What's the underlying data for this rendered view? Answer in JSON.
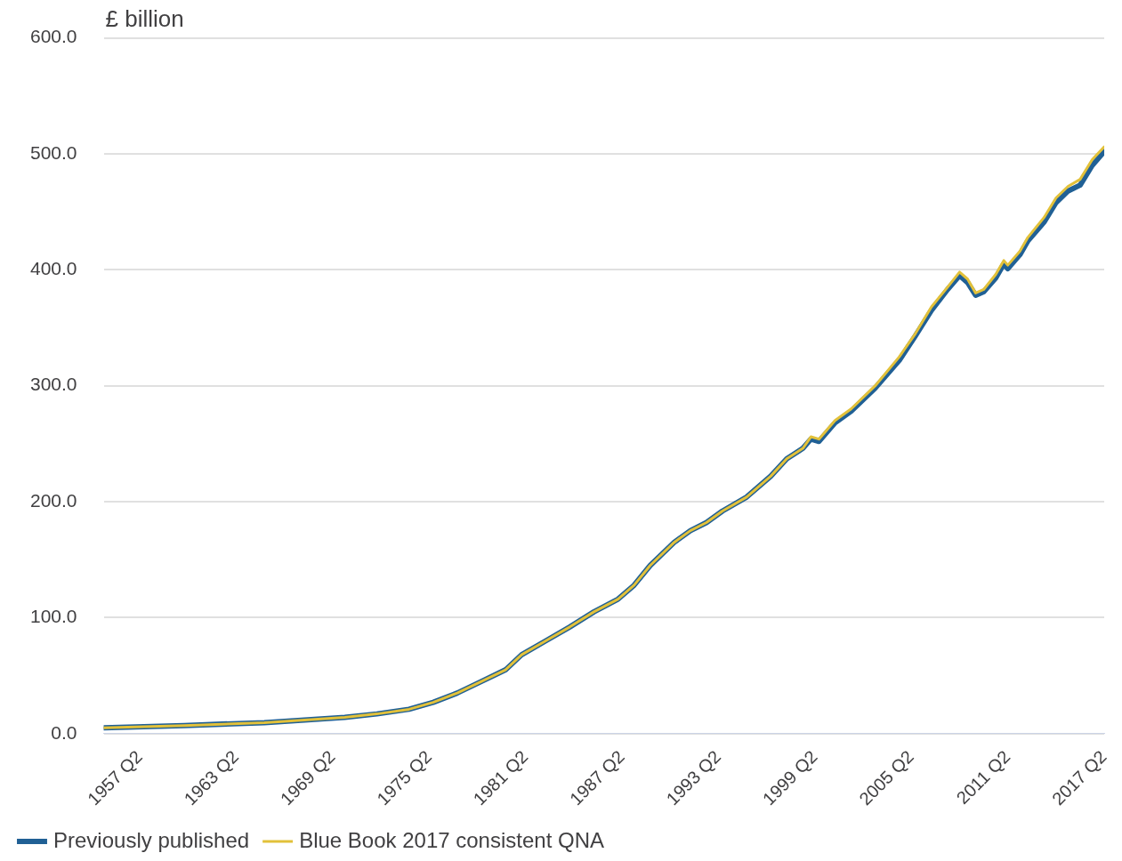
{
  "chart_data": {
    "type": "line",
    "ylabel": "£ billion",
    "xlim": [
      "1955-01",
      "2017-04"
    ],
    "xticks": [
      {
        "value": "1957-04",
        "label": "1957 Q2"
      },
      {
        "value": "1963-04",
        "label": "1963 Q2"
      },
      {
        "value": "1969-04",
        "label": "1969 Q2"
      },
      {
        "value": "1975-04",
        "label": "1975 Q2"
      },
      {
        "value": "1981-04",
        "label": "1981 Q2"
      },
      {
        "value": "1987-04",
        "label": "1987 Q2"
      },
      {
        "value": "1993-04",
        "label": "1993 Q2"
      },
      {
        "value": "1999-04",
        "label": "1999 Q2"
      },
      {
        "value": "2005-04",
        "label": "2005 Q2"
      },
      {
        "value": "2011-04",
        "label": "2011 Q2"
      },
      {
        "value": "2017-04",
        "label": "2017 Q2"
      }
    ],
    "ylim": [
      0,
      600
    ],
    "yticks": [
      {
        "value": 0,
        "label": "0.0"
      },
      {
        "value": 100,
        "label": "100.0"
      },
      {
        "value": 200,
        "label": "200.0"
      },
      {
        "value": 300,
        "label": "300.0"
      },
      {
        "value": 400,
        "label": "400.0"
      },
      {
        "value": 500,
        "label": "500.0"
      },
      {
        "value": 600,
        "label": "600.0"
      }
    ],
    "x": [
      "1955-01",
      "1960-01",
      "1965-01",
      "1970-01",
      "1972-01",
      "1974-01",
      "1975-07",
      "1977-01",
      "1978-07",
      "1980-01",
      "1981-01",
      "1982-07",
      "1984-01",
      "1985-07",
      "1987-01",
      "1988-01",
      "1989-01",
      "1990-07",
      "1991-07",
      "1992-07",
      "1993-07",
      "1995-01",
      "1996-07",
      "1997-07",
      "1998-07",
      "1999-01",
      "1999-07",
      "2000-07",
      "2001-07",
      "2003-01",
      "2004-07",
      "2005-07",
      "2006-07",
      "2007-07",
      "2008-04",
      "2008-10",
      "2009-04",
      "2009-10",
      "2010-07",
      "2011-01",
      "2011-04",
      "2012-01",
      "2012-07",
      "2013-07",
      "2014-04",
      "2015-01",
      "2015-10",
      "2016-07",
      "2017-04"
    ],
    "series": [
      {
        "name": "Previously published",
        "color": "#206095",
        "values": [
          5,
          7,
          9.5,
          14,
          17,
          21,
          27,
          35,
          45,
          55,
          68,
          80,
          92,
          105,
          116,
          128,
          145,
          165,
          175,
          182,
          192,
          204,
          222,
          237,
          246,
          254,
          252,
          268,
          278,
          298,
          322,
          343,
          365,
          383,
          395,
          389,
          378,
          381,
          393,
          405,
          401,
          413,
          425,
          441,
          458,
          468,
          473,
          490,
          502
        ]
      },
      {
        "name": "Blue Book 2017 consistent QNA",
        "color": "#e2c13a",
        "values": [
          5,
          7,
          9.5,
          14,
          17,
          21,
          27,
          35,
          45,
          55,
          68,
          80,
          92,
          105,
          116,
          128,
          145,
          165,
          175,
          182,
          192,
          204,
          222,
          237,
          246,
          256,
          254,
          270,
          280,
          300,
          325,
          345,
          368,
          385,
          398,
          392,
          380,
          383,
          396,
          408,
          404,
          416,
          428,
          445,
          462,
          472,
          478,
          495,
          506
        ]
      }
    ],
    "grid": "y",
    "legend": "bottom",
    "marker": "none",
    "line_style": "solid"
  }
}
